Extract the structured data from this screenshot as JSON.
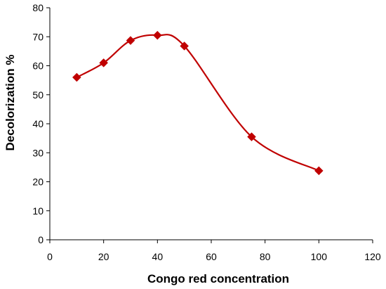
{
  "chart_data": {
    "type": "line",
    "title": "",
    "xlabel": "Congo red concentration",
    "ylabel": "Decolorization %",
    "xlim": [
      0,
      120
    ],
    "ylim": [
      0,
      80
    ],
    "x_ticks": [
      "0",
      "20",
      "40",
      "60",
      "80",
      "100",
      "120"
    ],
    "y_ticks": [
      "0",
      "10",
      "20",
      "30",
      "40",
      "50",
      "60",
      "70",
      "80"
    ],
    "grid": false,
    "legend": "none",
    "smooth": true,
    "marker": "diamond",
    "color": "#c00000",
    "series": [
      {
        "x": [
          10,
          20,
          30,
          40,
          50,
          75,
          100
        ],
        "y": [
          56,
          61,
          68.7,
          70.5,
          66.8,
          35.5,
          23.8
        ]
      }
    ]
  }
}
